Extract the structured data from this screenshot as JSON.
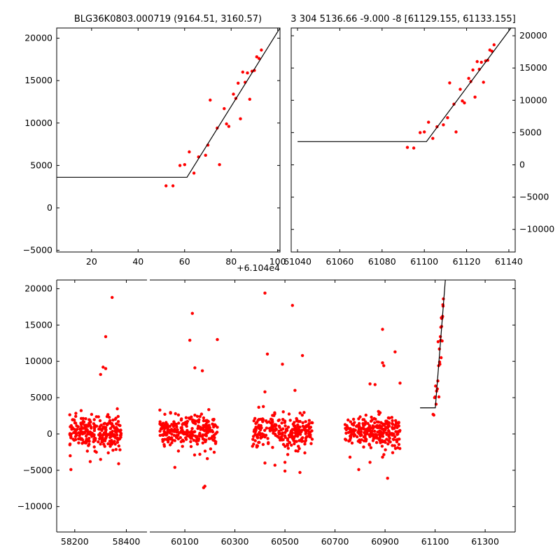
{
  "chart_data": [
    {
      "type": "scatter",
      "title": "BLG36K0803.000719 (9164.51, 3160.57)",
      "xlim": [
        5,
        101
      ],
      "ylim": [
        -5200,
        21200
      ],
      "xticks": [
        20,
        40,
        60,
        80,
        100
      ],
      "yticks": [
        -5000,
        0,
        5000,
        10000,
        15000,
        20000
      ],
      "xtick_labels": [
        "20",
        "40",
        "60",
        "80",
        "100"
      ],
      "ytick_labels": [
        "−5000",
        "0",
        "5000",
        "10000",
        "15000",
        "20000"
      ],
      "yaxis_side": "left",
      "offset_label": "+6.104e4",
      "points": [
        [
          52,
          2600
        ],
        [
          55,
          2600
        ],
        [
          58,
          5000
        ],
        [
          60,
          5100
        ],
        [
          62,
          6600
        ],
        [
          64,
          4100
        ],
        [
          66,
          6000
        ],
        [
          69,
          6200
        ],
        [
          70,
          7400
        ],
        [
          71,
          12700
        ],
        [
          74,
          9400
        ],
        [
          75,
          5100
        ],
        [
          77,
          11700
        ],
        [
          78,
          9900
        ],
        [
          79,
          9600
        ],
        [
          81,
          13400
        ],
        [
          82,
          12900
        ],
        [
          83,
          14700
        ],
        [
          84,
          10500
        ],
        [
          85,
          16000
        ],
        [
          86,
          14800
        ],
        [
          87,
          15900
        ],
        [
          88,
          12800
        ],
        [
          89,
          16100
        ],
        [
          90,
          16200
        ],
        [
          91,
          17800
        ],
        [
          92,
          17600
        ],
        [
          93,
          18600
        ]
      ],
      "model_line": [
        [
          5,
          3600
        ],
        [
          61,
          3600
        ],
        [
          101,
          21200
        ]
      ]
    },
    {
      "type": "scatter",
      "title": "3 304 5136.66 -9.000 -8 [61129.155, 61133.155]",
      "xlim": [
        61037,
        61143
      ],
      "ylim": [
        -13500,
        21200
      ],
      "xticks": [
        61040,
        61060,
        61080,
        61100,
        61120,
        61140
      ],
      "yticks": [
        -10000,
        -5000,
        0,
        5000,
        10000,
        15000,
        20000
      ],
      "xtick_labels": [
        "61040",
        "61060",
        "61080",
        "61100",
        "61120",
        "61140"
      ],
      "ytick_labels": [
        "−10000",
        "−5000",
        "0",
        "5000",
        "10000",
        "15000",
        "20000"
      ],
      "yaxis_side": "right",
      "points": [
        [
          61092,
          2700
        ],
        [
          61095,
          2600
        ],
        [
          61098,
          5000
        ],
        [
          61100,
          5100
        ],
        [
          61102,
          6600
        ],
        [
          61104,
          4100
        ],
        [
          61106,
          5900
        ],
        [
          61109,
          6200
        ],
        [
          61111,
          7300
        ],
        [
          61112,
          12700
        ],
        [
          61114,
          9400
        ],
        [
          61115,
          5100
        ],
        [
          61117,
          11700
        ],
        [
          61118,
          9900
        ],
        [
          61119,
          9600
        ],
        [
          61121,
          13400
        ],
        [
          61122,
          12900
        ],
        [
          61123,
          14700
        ],
        [
          61124,
          10500
        ],
        [
          61125,
          16000
        ],
        [
          61126,
          14800
        ],
        [
          61127,
          15900
        ],
        [
          61128,
          12800
        ],
        [
          61129,
          16100
        ],
        [
          61130,
          16200
        ],
        [
          61131,
          17800
        ],
        [
          61132,
          17600
        ],
        [
          61133,
          18600
        ]
      ],
      "model_line": [
        [
          61040,
          3600
        ],
        [
          61101,
          3600
        ],
        [
          61141,
          21200
        ]
      ]
    },
    {
      "type": "scatter",
      "xlim": [
        58130,
        61420
      ],
      "ylim": [
        -13500,
        21200
      ],
      "xticks": [
        58200,
        58400,
        60100,
        60300,
        60500,
        60700,
        60900,
        61100,
        61300
      ],
      "yticks": [
        -10000,
        -5000,
        0,
        5000,
        10000,
        15000,
        20000
      ],
      "xtick_labels": [
        "58200",
        "58400",
        "60100",
        "60300",
        "60500",
        "60700",
        "60900",
        "61100",
        "61300"
      ],
      "ytick_labels": [
        "−10000",
        "−5000",
        "0",
        "5000",
        "10000",
        "15000",
        "20000"
      ],
      "yaxis_side": "left",
      "seasons": [
        {
          "range": [
            58180,
            58380
          ],
          "outliers": [
            [
              58185,
              -4900
            ],
            [
              58320,
              13400
            ],
            [
              58300,
              8200
            ],
            [
              58310,
              9200
            ],
            [
              58320,
              9000
            ],
            [
              58345,
              18800
            ],
            [
              58330,
              -2600
            ],
            [
              58300,
              -3500
            ],
            [
              58260,
              -3800
            ],
            [
              58370,
              -4100
            ]
          ]
        },
        {
          "range": [
            60000,
            60230
          ],
          "outliers": [
            [
              60130,
              16600
            ],
            [
              60120,
              12900
            ],
            [
              60140,
              9100
            ],
            [
              60170,
              8700
            ],
            [
              60230,
              13000
            ],
            [
              60175,
              -7400
            ],
            [
              60180,
              -7200
            ],
            [
              60060,
              -4600
            ],
            [
              60160,
              -2800
            ],
            [
              60190,
              -3400
            ]
          ]
        },
        {
          "range": [
            60370,
            60610
          ],
          "outliers": [
            [
              60420,
              19400
            ],
            [
              60530,
              17700
            ],
            [
              60430,
              11000
            ],
            [
              60570,
              10800
            ],
            [
              60490,
              9600
            ],
            [
              60420,
              5800
            ],
            [
              60540,
              6000
            ],
            [
              60420,
              -4000
            ],
            [
              60500,
              -3900
            ],
            [
              60460,
              -4300
            ],
            [
              60500,
              -5100
            ],
            [
              60560,
              -5300
            ]
          ]
        },
        {
          "range": [
            60740,
            60960
          ],
          "outliers": [
            [
              60890,
              14400
            ],
            [
              60940,
              11300
            ],
            [
              60890,
              9800
            ],
            [
              60895,
              9400
            ],
            [
              60960,
              7000
            ],
            [
              60840,
              6900
            ],
            [
              60860,
              6800
            ],
            [
              60795,
              -4900
            ],
            [
              60760,
              -3200
            ],
            [
              60840,
              -3900
            ],
            [
              60910,
              -6100
            ],
            [
              60890,
              -3200
            ]
          ]
        }
      ],
      "tail_points": [
        [
          61092,
          2700
        ],
        [
          61095,
          2600
        ],
        [
          61098,
          5000
        ],
        [
          61100,
          5100
        ],
        [
          61102,
          6600
        ],
        [
          61104,
          4100
        ],
        [
          61106,
          5900
        ],
        [
          61109,
          6200
        ],
        [
          61111,
          7300
        ],
        [
          61112,
          12700
        ],
        [
          61114,
          9400
        ],
        [
          61115,
          5100
        ],
        [
          61117,
          11700
        ],
        [
          61118,
          9900
        ],
        [
          61119,
          9600
        ],
        [
          61121,
          13400
        ],
        [
          61122,
          12900
        ],
        [
          61123,
          14700
        ],
        [
          61124,
          10500
        ],
        [
          61125,
          16000
        ],
        [
          61126,
          14800
        ],
        [
          61127,
          15900
        ],
        [
          61128,
          12800
        ],
        [
          61129,
          16100
        ],
        [
          61130,
          16200
        ],
        [
          61131,
          17800
        ],
        [
          61132,
          17600
        ],
        [
          61133,
          18600
        ]
      ],
      "model_line": [
        [
          61040,
          3600
        ],
        [
          61101,
          3600
        ],
        [
          61141,
          21200
        ]
      ]
    }
  ],
  "style": {
    "point_color": "#ff0000",
    "line_color": "#000000"
  }
}
